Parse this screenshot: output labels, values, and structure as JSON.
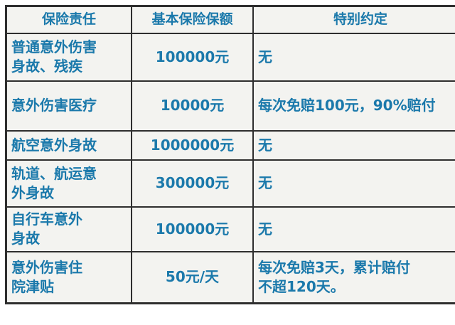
{
  "table": {
    "title": "insurance-benefits-table",
    "headers": {
      "liability": "保险责任",
      "amount": "基本保险保额",
      "special": "特别约定"
    },
    "rows": [
      {
        "liability": "普通意外伤害\n身故、残疾",
        "amount": "100000元",
        "special": "无"
      },
      {
        "liability": "意外伤害医疗",
        "amount": "10000元",
        "special": "每次免赔100元，90%赔付"
      },
      {
        "liability": "航空意外身故",
        "amount": "1000000元",
        "special": "无"
      },
      {
        "liability": "轨道、航运意\n外身故",
        "amount": "300000元",
        "special": "无"
      },
      {
        "liability": "自行车意外\n身故",
        "amount": "100000元",
        "special": "无"
      },
      {
        "liability": "意外伤害住\n院津贴",
        "amount": "50元/天",
        "special": "每次免赔3天，累计赔付\n不超120天。"
      }
    ],
    "colors": {
      "text": "#1b79ab",
      "border": "#2e2e2e",
      "cell_background": "#f3f3f0",
      "page_background": "#ffffff"
    }
  }
}
